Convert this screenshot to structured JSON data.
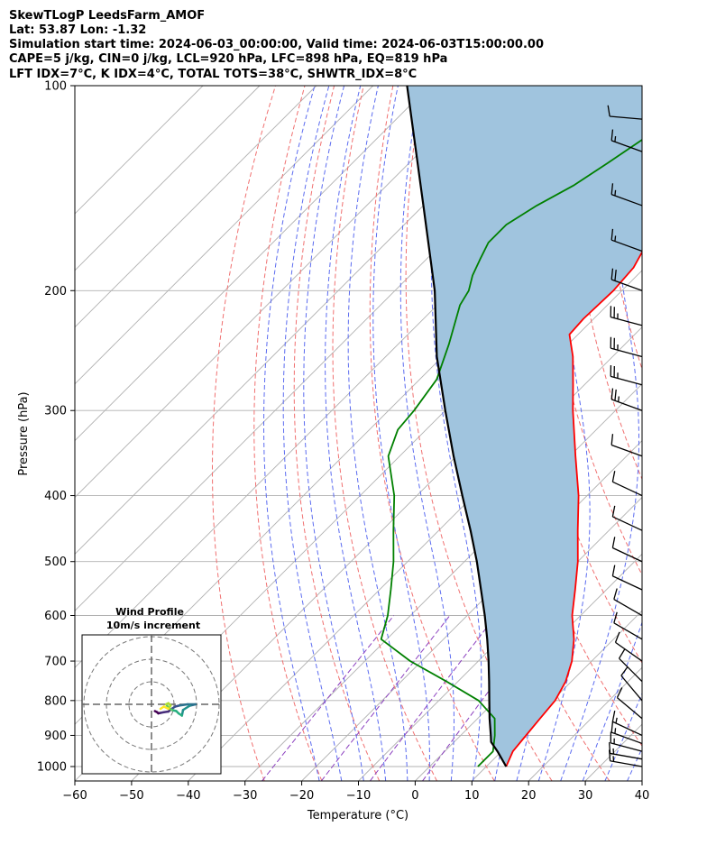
{
  "header": {
    "title": "SkewTLogP LeedsFarm_AMOF",
    "location": "Lat: 53.87   Lon: -1.32",
    "times": "Simulation start time: 2024-06-03_00:00:00, Valid time: 2024-06-03T15:00:00.00",
    "indices1": "CAPE=5 j/kg, CIN=0 j/kg, LCL=920 hPa, LFC=898 hPa, EQ=819 hPa",
    "indices2": "LFT IDX=7°C, K IDX=4°C, TOTAL TOTS=38°C, SHWTR_IDX=8°C"
  },
  "chart_data": {
    "type": "line",
    "subtype": "skew-t log-p diagram",
    "xlabel": "Temperature (°C)",
    "ylabel": "Pressure (hPa)",
    "xlim": [
      -60,
      40
    ],
    "ylim": [
      1050,
      100
    ],
    "yscale": "log",
    "x_ticks": [
      -60,
      -50,
      -40,
      -30,
      -20,
      -10,
      0,
      10,
      20,
      30,
      40
    ],
    "x_tick_labels": [
      "−60",
      "−50",
      "−40",
      "−30",
      "−20",
      "−10",
      "0",
      "10",
      "20",
      "30",
      "40"
    ],
    "y_ticks": [
      1000,
      900,
      800,
      700,
      600,
      500,
      400,
      300,
      200,
      100
    ],
    "y_tick_labels": [
      "1000",
      "900",
      "800",
      "700",
      "600",
      "500",
      "400",
      "300",
      "200",
      "100"
    ],
    "grid": true,
    "colors": {
      "temperature": "#ff0000",
      "dewpoint": "#008000",
      "parcel": "#000000",
      "cape_fill": "#a0c4de",
      "dry_adiabats": "#f07070",
      "moist_adiabats": "#5c6cf0",
      "mixing_ratio": "#8b3fbf",
      "isotherms": "#b0b0b0",
      "barbs": "#000000"
    },
    "series": [
      {
        "role": "temperature",
        "points": [
          [
            1000,
            13.5
          ],
          [
            950,
            12
          ],
          [
            900,
            11.5
          ],
          [
            850,
            11
          ],
          [
            800,
            10.5
          ],
          [
            750,
            9
          ],
          [
            700,
            6.5
          ],
          [
            650,
            3
          ],
          [
            600,
            -1.5
          ],
          [
            550,
            -5.5
          ],
          [
            500,
            -10
          ],
          [
            450,
            -15.5
          ],
          [
            400,
            -21.5
          ],
          [
            350,
            -29
          ],
          [
            300,
            -37.5
          ],
          [
            275,
            -42
          ],
          [
            250,
            -47
          ],
          [
            232,
            -51.5
          ],
          [
            220,
            -51.8
          ],
          [
            200,
            -51.5
          ],
          [
            185,
            -52
          ],
          [
            175,
            -53.3
          ],
          [
            165,
            -55.6
          ],
          [
            150,
            -57
          ],
          [
            140,
            -57
          ],
          [
            130,
            -58
          ],
          [
            120,
            -60
          ],
          [
            110,
            -62
          ],
          [
            100,
            -64
          ]
        ]
      },
      {
        "role": "dewpoint",
        "points": [
          [
            1000,
            8.5
          ],
          [
            950,
            8.5
          ],
          [
            900,
            6
          ],
          [
            850,
            3
          ],
          [
            800,
            -3
          ],
          [
            750,
            -12
          ],
          [
            700,
            -22
          ],
          [
            650,
            -31
          ],
          [
            600,
            -34
          ],
          [
            550,
            -38
          ],
          [
            500,
            -42.5
          ],
          [
            450,
            -48
          ],
          [
            400,
            -54
          ],
          [
            350,
            -62
          ],
          [
            320,
            -65
          ],
          [
            300,
            -65.5
          ],
          [
            270,
            -67
          ],
          [
            240,
            -71
          ],
          [
            210,
            -76
          ],
          [
            200,
            -77
          ],
          [
            190,
            -79
          ],
          [
            180,
            -80.5
          ],
          [
            170,
            -82
          ],
          [
            160,
            -82
          ],
          [
            150,
            -80
          ],
          [
            140,
            -77
          ],
          [
            130,
            -75
          ],
          [
            120,
            -73
          ],
          [
            110,
            -71
          ],
          [
            100,
            -69.5
          ]
        ]
      },
      {
        "role": "parcel",
        "points": [
          [
            1000,
            13.5
          ],
          [
            950,
            9.3
          ],
          [
            920,
            6.5
          ],
          [
            900,
            5.3
          ],
          [
            850,
            2.1
          ],
          [
            800,
            -1.1
          ],
          [
            750,
            -4.5
          ],
          [
            700,
            -8.2
          ],
          [
            650,
            -12.3
          ],
          [
            600,
            -16.9
          ],
          [
            550,
            -22.1
          ],
          [
            500,
            -27.8
          ],
          [
            450,
            -34.4
          ],
          [
            400,
            -42
          ],
          [
            350,
            -50.5
          ],
          [
            300,
            -60
          ],
          [
            250,
            -71
          ],
          [
            200,
            -83
          ],
          [
            150,
            -100
          ],
          [
            100,
            -124
          ]
        ]
      }
    ],
    "wind_barbs": [
      {
        "p": 1000,
        "speed_kt": 15,
        "dir_deg": 280
      },
      {
        "p": 975,
        "speed_kt": 15,
        "dir_deg": 280
      },
      {
        "p": 950,
        "speed_kt": 15,
        "dir_deg": 285
      },
      {
        "p": 925,
        "speed_kt": 15,
        "dir_deg": 290
      },
      {
        "p": 900,
        "speed_kt": 15,
        "dir_deg": 295
      },
      {
        "p": 850,
        "speed_kt": 10,
        "dir_deg": 310
      },
      {
        "p": 800,
        "speed_kt": 10,
        "dir_deg": 320
      },
      {
        "p": 750,
        "speed_kt": 10,
        "dir_deg": 315
      },
      {
        "p": 700,
        "speed_kt": 10,
        "dir_deg": 305
      },
      {
        "p": 650,
        "speed_kt": 10,
        "dir_deg": 300
      },
      {
        "p": 600,
        "speed_kt": 10,
        "dir_deg": 300
      },
      {
        "p": 550,
        "speed_kt": 10,
        "dir_deg": 295
      },
      {
        "p": 500,
        "speed_kt": 10,
        "dir_deg": 295
      },
      {
        "p": 450,
        "speed_kt": 10,
        "dir_deg": 295
      },
      {
        "p": 400,
        "speed_kt": 10,
        "dir_deg": 295
      },
      {
        "p": 350,
        "speed_kt": 10,
        "dir_deg": 290
      },
      {
        "p": 300,
        "speed_kt": 25,
        "dir_deg": 290
      },
      {
        "p": 275,
        "speed_kt": 25,
        "dir_deg": 285
      },
      {
        "p": 250,
        "speed_kt": 25,
        "dir_deg": 285
      },
      {
        "p": 225,
        "speed_kt": 25,
        "dir_deg": 285
      },
      {
        "p": 200,
        "speed_kt": 20,
        "dir_deg": 290
      },
      {
        "p": 175,
        "speed_kt": 15,
        "dir_deg": 290
      },
      {
        "p": 150,
        "speed_kt": 15,
        "dir_deg": 290
      },
      {
        "p": 125,
        "speed_kt": 15,
        "dir_deg": 290
      },
      {
        "p": 112,
        "speed_kt": 10,
        "dir_deg": 275
      }
    ],
    "hodograph": {
      "title": "Wind Profile",
      "subtitle": "10m/s increment",
      "ring_increment_ms": 10,
      "points": [
        [
          1.5,
          -3
        ],
        [
          2.5,
          -3.5
        ],
        [
          3,
          -4
        ],
        [
          4,
          -3.8
        ],
        [
          5.5,
          -3.5
        ],
        [
          7.5,
          -3.2
        ],
        [
          9,
          -2
        ],
        [
          10.5,
          -1
        ],
        [
          12.5,
          -0.5
        ],
        [
          16,
          0
        ],
        [
          19.5,
          0
        ],
        [
          17,
          -0.6
        ],
        [
          14,
          -2.5
        ],
        [
          13.5,
          -5
        ],
        [
          12,
          -4
        ],
        [
          11,
          -3
        ],
        [
          9,
          -2.5
        ],
        [
          7.5,
          -1.5
        ],
        [
          6.5,
          0
        ],
        [
          7.5,
          0.5
        ],
        [
          8.5,
          -0.5
        ],
        [
          7.5,
          -2
        ],
        [
          5.5,
          -1
        ],
        [
          4,
          -2
        ]
      ]
    }
  }
}
